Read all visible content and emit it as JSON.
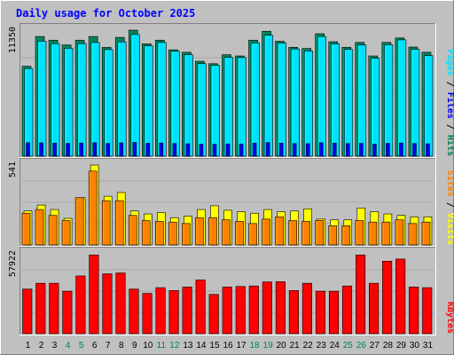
{
  "colors": {
    "background": "#c0c0c0",
    "title": "#0000ff",
    "hits": "#00805c",
    "files": "#0000ff",
    "pages": "#00e0ff",
    "visits": "#ffff00",
    "sites": "#ff8000",
    "kbytes": "#ff0000",
    "weekend": "#00805c",
    "weekday": "#000000"
  },
  "chart_data": {
    "type": "bar",
    "title": "Daily usage for October 2025",
    "categories": [
      "1",
      "2",
      "3",
      "4",
      "5",
      "6",
      "7",
      "8",
      "9",
      "10",
      "11",
      "12",
      "13",
      "14",
      "15",
      "16",
      "17",
      "18",
      "19",
      "20",
      "21",
      "22",
      "23",
      "24",
      "25",
      "26",
      "27",
      "28",
      "29",
      "30",
      "31"
    ],
    "weekend_days": [
      "4",
      "5",
      "11",
      "12",
      "18",
      "19",
      "25",
      "26"
    ],
    "panels": [
      {
        "id": "hits-panel",
        "ymax_label": "11350",
        "ylim": [
          0,
          11350
        ],
        "legend": [
          {
            "name": "Hits",
            "color": "#00805c"
          },
          {
            "name": "Files",
            "color": "#0000ff"
          },
          {
            "name": "Pages",
            "color": "#00e0ff"
          }
        ],
        "series": [
          {
            "name": "Hits",
            "values": [
              8100,
              10780,
              10450,
              10020,
              10450,
              10780,
              9800,
              10700,
              11350,
              10120,
              10450,
              9580,
              9360,
              8550,
              8330,
              9140,
              9030,
              10450,
              11250,
              10350,
              9810,
              9700,
              11030,
              10310,
              9810,
              10250,
              9030,
              10250,
              10650,
              9830,
              9360
            ]
          },
          {
            "name": "Pages",
            "values": [
              7900,
              10360,
              10140,
              9720,
              10140,
              10240,
              9600,
              10300,
              10960,
              9940,
              10240,
              9460,
              9140,
              8330,
              8190,
              8900,
              8880,
              10200,
              10900,
              10190,
              9660,
              9480,
              10780,
              10110,
              9620,
              10020,
              8820,
              10040,
              10480,
              9620,
              9060
            ]
          },
          {
            "name": "Files",
            "values": [
              1220,
              1200,
              1180,
              1160,
              1190,
              1210,
              1150,
              1200,
              1240,
              1170,
              1190,
              1140,
              1120,
              1080,
              1070,
              1110,
              1100,
              1180,
              1230,
              1170,
              1140,
              1130,
              1210,
              1170,
              1140,
              1160,
              1090,
              1160,
              1190,
              1140,
              1120
            ]
          }
        ]
      },
      {
        "id": "visits-panel",
        "ymax_label": "541",
        "ylim": [
          0,
          541
        ],
        "legend": [
          {
            "name": "Visits",
            "color": "#ffff00"
          },
          {
            "name": "Sites",
            "color": "#ff8000"
          }
        ],
        "series": [
          {
            "name": "Visits",
            "values": [
              230,
              270,
              240,
              180,
              320,
              541,
              330,
              355,
              230,
              210,
              220,
              185,
              195,
              240,
              265,
              235,
              225,
              215,
              240,
              225,
              230,
              245,
              175,
              170,
              170,
              250,
              225,
              210,
              200,
              190,
              190
            ]
          },
          {
            "name": "Sites",
            "values": [
              215,
              240,
              200,
              165,
              320,
              500,
              300,
              300,
              200,
              165,
              160,
              155,
              145,
              185,
              185,
              170,
              160,
              145,
              175,
              190,
              165,
              160,
              165,
              130,
              130,
              165,
              155,
              155,
              170,
              145,
              155
            ]
          }
        ]
      },
      {
        "id": "kbytes-panel",
        "ymax_label": "57922",
        "ylim": [
          0,
          57922
        ],
        "legend": [
          {
            "name": "KBytes",
            "color": "#ff0000"
          }
        ],
        "series": [
          {
            "name": "KBytes",
            "values": [
              32340,
              36590,
              36590,
              30820,
              41890,
              57120,
              43450,
              44050,
              32340,
              29250,
              33400,
              31280,
              33850,
              38960,
              28500,
              33850,
              34250,
              34610,
              37550,
              37710,
              31280,
              36590,
              30820,
              30820,
              34610,
              57120,
              36590,
              52600,
              54150,
              33850,
              33400
            ]
          }
        ]
      }
    ]
  }
}
